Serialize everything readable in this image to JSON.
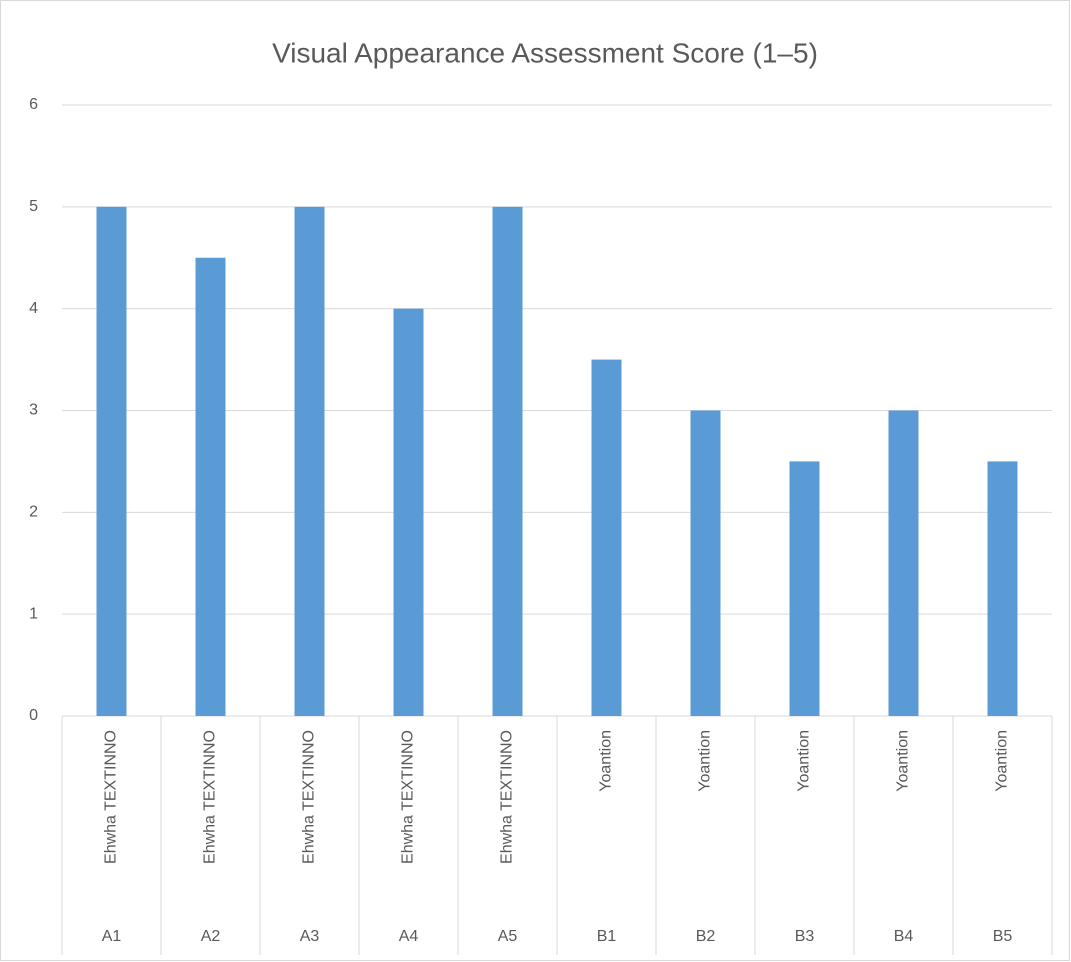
{
  "chart_data": {
    "type": "bar",
    "title": "Visual Appearance Assessment Score (1–5)",
    "categories": [
      "A1",
      "A2",
      "A3",
      "A4",
      "A5",
      "B1",
      "B2",
      "B3",
      "B4",
      "B5"
    ],
    "subcategories": [
      "Ehwha TEXTINNO",
      "Ehwha TEXTINNO",
      "Ehwha TEXTINNO",
      "Ehwha TEXTINNO",
      "Ehwha TEXTINNO",
      "Yoantion",
      "Yoantion",
      "Yoantion",
      "Yoantion",
      "Yoantion"
    ],
    "values": [
      5,
      4.5,
      5,
      4,
      5,
      3.5,
      3,
      2.5,
      3,
      2.5
    ],
    "color": "#5b9bd5",
    "ylim": [
      0,
      6
    ],
    "yticks": [
      0,
      1,
      2,
      3,
      4,
      5,
      6
    ],
    "grid": true
  }
}
